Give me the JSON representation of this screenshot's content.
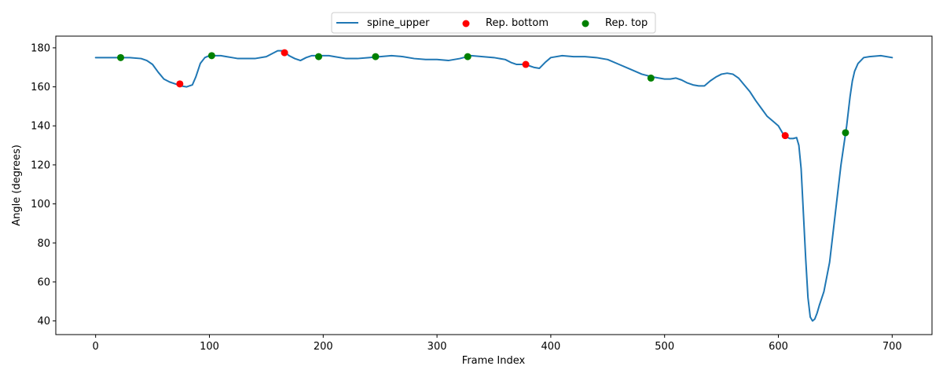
{
  "chart_data": {
    "type": "line",
    "xlabel": "Frame Index",
    "ylabel": "Angle (degrees)",
    "xlim": [
      -35,
      735
    ],
    "ylim": [
      33,
      186
    ],
    "xticks": [
      0,
      100,
      200,
      300,
      400,
      500,
      600,
      700
    ],
    "yticks": [
      40,
      60,
      80,
      100,
      120,
      140,
      160,
      180
    ],
    "grid": false,
    "legend_position": "top-center",
    "series": [
      {
        "name": "spine_upper",
        "type": "line",
        "color": "#1f77b4",
        "x": [
          0,
          10,
          20,
          30,
          40,
          45,
          50,
          55,
          60,
          65,
          70,
          75,
          80,
          85,
          88,
          92,
          96,
          100,
          105,
          110,
          115,
          120,
          125,
          130,
          140,
          150,
          155,
          160,
          165,
          170,
          175,
          180,
          185,
          190,
          195,
          200,
          205,
          210,
          220,
          230,
          240,
          250,
          260,
          270,
          280,
          290,
          300,
          310,
          320,
          330,
          340,
          350,
          360,
          365,
          370,
          375,
          380,
          385,
          390,
          395,
          400,
          410,
          420,
          430,
          440,
          450,
          460,
          470,
          480,
          490,
          495,
          500,
          505,
          510,
          515,
          520,
          525,
          530,
          535,
          540,
          545,
          550,
          555,
          560,
          565,
          570,
          575,
          580,
          585,
          590,
          595,
          600,
          605,
          610,
          613,
          616,
          618,
          620,
          622,
          624,
          626,
          628,
          630,
          632,
          634,
          636,
          640,
          645,
          650,
          655,
          660,
          663,
          665,
          667,
          670,
          675,
          680,
          690,
          700
        ],
        "y": [
          175,
          175,
          175,
          175,
          174.5,
          173.5,
          171.5,
          167.5,
          164,
          162.5,
          161.5,
          160.5,
          160,
          161,
          165,
          172,
          175,
          176,
          176,
          176,
          175.5,
          175,
          174.5,
          174.5,
          174.5,
          175.5,
          177,
          178.5,
          178.5,
          176,
          174.5,
          173.5,
          175,
          176,
          176,
          176,
          176,
          175.5,
          174.5,
          174.5,
          175,
          175.5,
          176,
          175.5,
          174.5,
          174,
          174,
          173.5,
          174.5,
          176,
          175.5,
          175,
          174,
          172.5,
          171.5,
          171.5,
          171,
          170,
          169.5,
          172.5,
          175,
          176,
          175.5,
          175.5,
          175,
          174,
          171.5,
          169,
          166.5,
          165,
          164.5,
          164,
          164,
          164.5,
          163.5,
          162,
          161,
          160.5,
          160.5,
          163,
          165,
          166.5,
          167,
          166.5,
          164.5,
          161,
          157.5,
          153,
          149,
          145,
          142.5,
          140,
          135,
          133.5,
          133.5,
          134,
          130,
          118,
          95,
          72,
          52,
          42,
          40,
          41,
          44,
          48,
          55,
          70,
          95,
          120,
          140,
          155,
          163,
          168,
          172,
          175,
          175.5,
          176,
          175
        ]
      },
      {
        "name": "Rep. bottom",
        "type": "scatter",
        "color": "#ff0000",
        "x": [
          74,
          166,
          378,
          606
        ],
        "y": [
          161.5,
          177.5,
          171.5,
          135
        ]
      },
      {
        "name": "Rep. top",
        "type": "scatter",
        "color": "#008000",
        "x": [
          22,
          102,
          196,
          246,
          327,
          488,
          659
        ],
        "y": [
          175,
          176,
          175.5,
          175.5,
          175.5,
          164.5,
          136.5
        ]
      }
    ]
  }
}
